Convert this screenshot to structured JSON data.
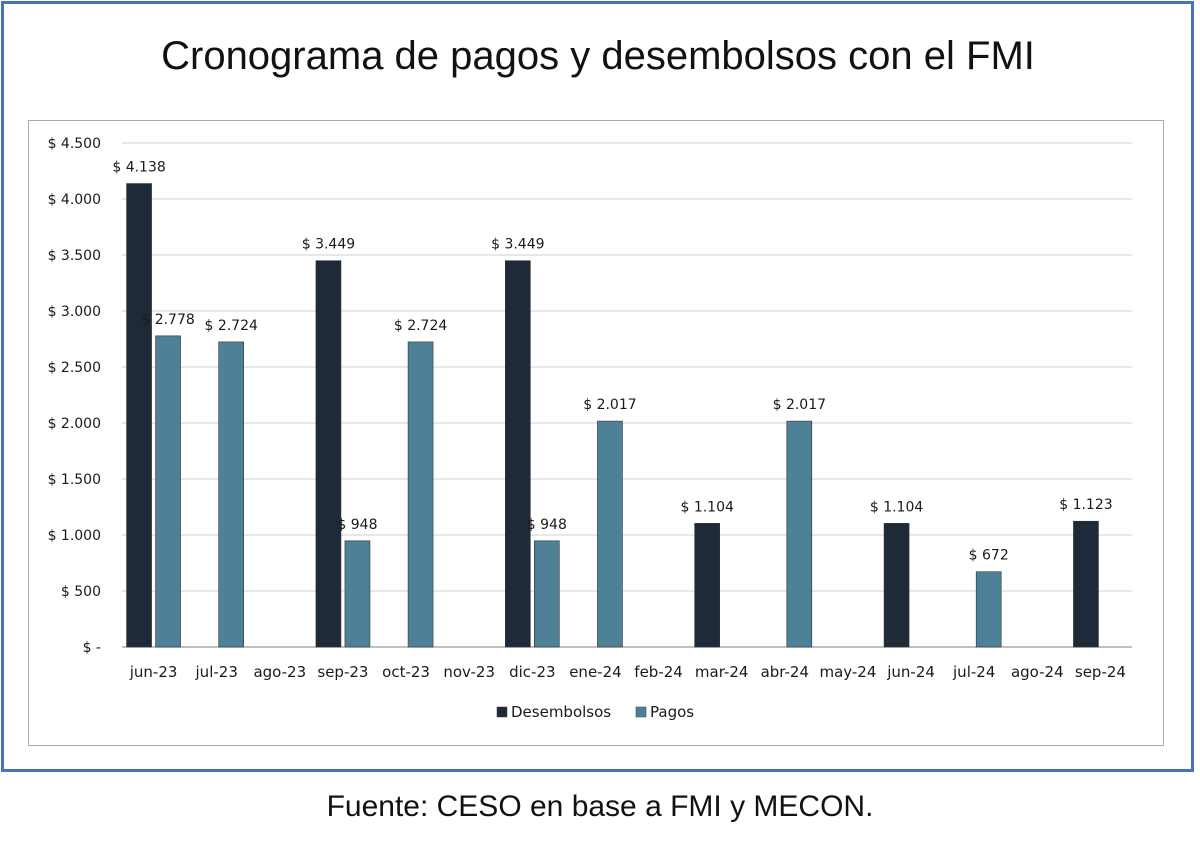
{
  "title": "Cronograma de pagos y desembolsos con el FMI",
  "source": "Fuente: CESO en base a FMI y MECON.",
  "chart_data": {
    "type": "bar",
    "title": "Cronograma de pagos y desembolsos con el FMI",
    "xlabel": "",
    "ylabel": "",
    "categories": [
      "jun-23",
      "jul-23",
      "ago-23",
      "sep-23",
      "oct-23",
      "nov-23",
      "dic-23",
      "ene-24",
      "feb-24",
      "mar-24",
      "abr-24",
      "may-24",
      "jun-24",
      "jul-24",
      "ago-24",
      "sep-24"
    ],
    "series": [
      {
        "name": "Desembolsos",
        "color": "#1f2a38",
        "values": [
          4138,
          null,
          null,
          3449,
          null,
          null,
          3449,
          null,
          null,
          1104,
          null,
          null,
          1104,
          null,
          null,
          1123
        ],
        "labels": [
          "$ 4.138",
          "",
          "",
          "$ 3.449",
          "",
          "",
          "$ 3.449",
          "",
          "",
          "$ 1.104",
          "",
          "",
          "$ 1.104",
          "",
          "",
          "$ 1.123"
        ]
      },
      {
        "name": "Pagos",
        "color": "#4e8098",
        "values": [
          2778,
          2724,
          null,
          948,
          2724,
          null,
          948,
          2017,
          null,
          null,
          2017,
          null,
          null,
          672,
          null,
          null
        ],
        "labels": [
          "$ 2.778",
          "$ 2.724",
          "",
          "$ 948",
          "$ 2.724",
          "",
          "$ 948",
          "$ 2.017",
          "",
          "",
          "$ 2.017",
          "",
          "",
          "$ 672",
          "",
          ""
        ]
      }
    ],
    "ylim": [
      0,
      4500
    ],
    "yticks": [
      0,
      500,
      1000,
      1500,
      2000,
      2500,
      3000,
      3500,
      4000,
      4500
    ],
    "ytick_labels": [
      "$ -",
      "$ 500",
      "$ 1.000",
      "$ 1.500",
      "$ 2.000",
      "$ 2.500",
      "$ 3.000",
      "$ 3.500",
      "$ 4.000",
      "$ 4.500"
    ],
    "grid": true,
    "legend": "bottom"
  }
}
